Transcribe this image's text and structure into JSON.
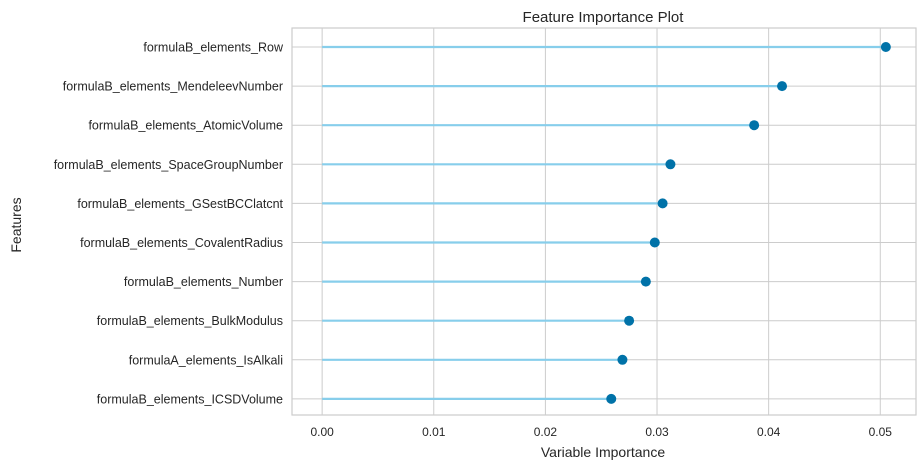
{
  "chart_data": {
    "type": "lollipop",
    "title": "Feature Importance Plot",
    "xlabel": "Variable Importance",
    "ylabel": "Features",
    "xlim": [
      -0.0027,
      0.0532
    ],
    "xticks": [
      0.0,
      0.01,
      0.02,
      0.03,
      0.04,
      0.05
    ],
    "xtick_labels": [
      "0.00",
      "0.01",
      "0.02",
      "0.03",
      "0.04",
      "0.05"
    ],
    "grid": true,
    "categories": [
      "formulaB_elements_Row",
      "formulaB_elements_MendeleevNumber",
      "formulaB_elements_AtomicVolume",
      "formulaB_elements_SpaceGroupNumber",
      "formulaB_elements_GSestBCClatcnt",
      "formulaB_elements_CovalentRadius",
      "formulaB_elements_Number",
      "formulaB_elements_BulkModulus",
      "formulaA_elements_IsAlkali",
      "formulaB_elements_ICSDVolume"
    ],
    "values": [
      0.0505,
      0.0412,
      0.0387,
      0.0312,
      0.0305,
      0.0298,
      0.029,
      0.0275,
      0.0269,
      0.0259
    ],
    "colors": {
      "stem": "#87ceeb",
      "marker": "#0072a8",
      "grid": "#cccccc",
      "axes_border": "#cccccc"
    }
  }
}
